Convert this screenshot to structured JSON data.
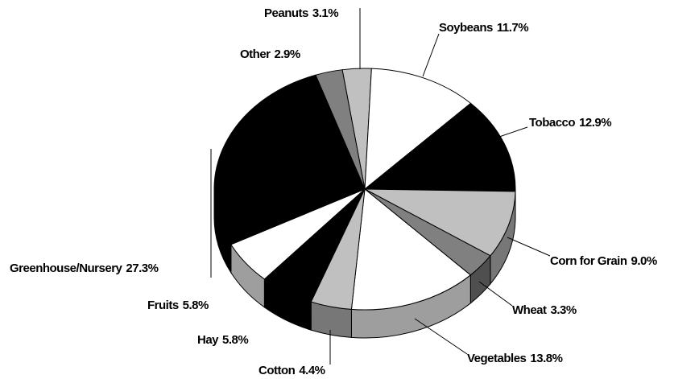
{
  "chart_data": {
    "type": "pie",
    "categories": [
      "Peanuts",
      "Soybeans",
      "Tobacco",
      "Corn for Grain",
      "Wheat",
      "Vegetables",
      "Cotton",
      "Hay",
      "Fruits",
      "Greenhouse/Nursery",
      "Other"
    ],
    "values": [
      3.1,
      11.7,
      12.9,
      9.0,
      3.3,
      13.8,
      4.4,
      5.8,
      5.8,
      27.3,
      2.9
    ],
    "value_labels": [
      "3.1%",
      "11.7%",
      "12.9%",
      "9.0%",
      "3.3%",
      "13.8%",
      "4.4%",
      "5.8%",
      "5.8%",
      "27.3%",
      "2.9%"
    ],
    "colors": [
      "#c0c0c0",
      "#ffffff",
      "#000000",
      "#c0c0c0",
      "#808080",
      "#ffffff",
      "#c0c0c0",
      "#000000",
      "#ffffff",
      "#000000",
      "#808080"
    ]
  }
}
